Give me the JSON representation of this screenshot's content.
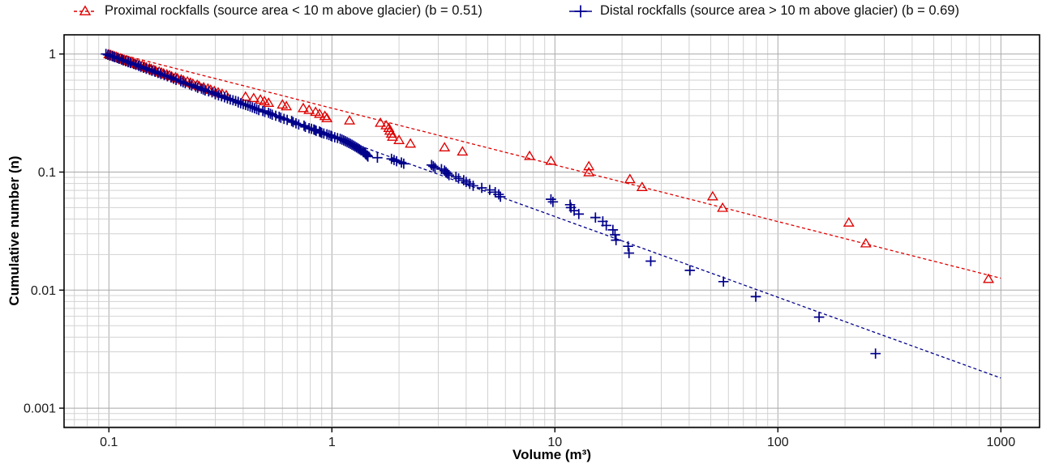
{
  "chart_data": {
    "type": "scatter",
    "title": "",
    "xlabel": "Volume (m³)",
    "ylabel": "Cumulative number (n)",
    "x_scale": "log",
    "y_scale": "log",
    "xlim": [
      0.062,
      1500
    ],
    "ylim": [
      0.00064,
      1.45
    ],
    "grid": "log major+minor grey, white background",
    "legend_position": "top",
    "x_ticks": [
      {
        "v": 0.1,
        "label": "0.1"
      },
      {
        "v": 1,
        "label": "1"
      },
      {
        "v": 10,
        "label": "10"
      },
      {
        "v": 100,
        "label": "100"
      },
      {
        "v": 1000,
        "label": "1000"
      }
    ],
    "y_ticks": [
      {
        "v": 1,
        "label": "1"
      },
      {
        "v": 0.1,
        "label": "0.1"
      },
      {
        "v": 0.01,
        "label": "0.01"
      },
      {
        "v": 0.001,
        "label": "0.001"
      }
    ],
    "series": [
      {
        "name": "Proximal rockfalls (source area < 10 m above glacier) (b = 0.51)",
        "b_value": 0.51,
        "marker": "triangle-open",
        "color": "#DE0000",
        "line_style": "dashed",
        "fit_line": {
          "from": [
            0.1,
            1.05
          ],
          "to": [
            1000,
            0.0126
          ]
        },
        "points": [
          [
            880,
            0.0125
          ],
          [
            248,
            0.025
          ],
          [
            208,
            0.0375
          ],
          [
            56.5,
            0.05
          ],
          [
            51,
            0.0625
          ],
          [
            24.6,
            0.075
          ],
          [
            21.7,
            0.0875
          ],
          [
            14.2,
            0.1
          ],
          [
            14.2,
            0.1125
          ],
          [
            9.6,
            0.125
          ],
          [
            7.7,
            0.1375
          ],
          [
            3.85,
            0.15
          ],
          [
            3.2,
            0.1625
          ],
          [
            2.25,
            0.175
          ],
          [
            2.0,
            0.1875
          ],
          [
            1.87,
            0.2
          ],
          [
            1.85,
            0.2125
          ],
          [
            1.82,
            0.225
          ],
          [
            1.8,
            0.2375
          ],
          [
            1.75,
            0.25
          ],
          [
            1.65,
            0.2625
          ],
          [
            1.2,
            0.275
          ],
          [
            0.95,
            0.2875
          ],
          [
            0.93,
            0.3
          ],
          [
            0.88,
            0.3125
          ],
          [
            0.845,
            0.325
          ],
          [
            0.79,
            0.3375
          ],
          [
            0.744,
            0.35
          ],
          [
            0.625,
            0.3625
          ],
          [
            0.6,
            0.375
          ],
          [
            0.52,
            0.3875
          ],
          [
            0.498,
            0.4
          ],
          [
            0.478,
            0.4125
          ],
          [
            0.446,
            0.425
          ],
          [
            0.41,
            0.4375
          ],
          [
            0.336,
            0.45
          ],
          [
            0.322,
            0.4625
          ],
          [
            0.309,
            0.475
          ],
          [
            0.297,
            0.4875
          ],
          [
            0.286,
            0.5
          ],
          [
            0.278,
            0.5125
          ],
          [
            0.266,
            0.525
          ],
          [
            0.254,
            0.5375
          ],
          [
            0.249,
            0.55
          ],
          [
            0.238,
            0.5625
          ],
          [
            0.232,
            0.575
          ],
          [
            0.225,
            0.5875
          ],
          [
            0.216,
            0.6
          ],
          [
            0.211,
            0.6125
          ],
          [
            0.203,
            0.625
          ],
          [
            0.199,
            0.6375
          ],
          [
            0.191,
            0.65
          ],
          [
            0.187,
            0.6625
          ],
          [
            0.182,
            0.675
          ],
          [
            0.176,
            0.6875
          ],
          [
            0.172,
            0.7
          ],
          [
            0.168,
            0.7125
          ],
          [
            0.162,
            0.725
          ],
          [
            0.159,
            0.7375
          ],
          [
            0.155,
            0.75
          ],
          [
            0.152,
            0.7625
          ],
          [
            0.147,
            0.775
          ],
          [
            0.144,
            0.7875
          ],
          [
            0.141,
            0.8
          ],
          [
            0.137,
            0.8125
          ],
          [
            0.134,
            0.825
          ],
          [
            0.131,
            0.8375
          ],
          [
            0.128,
            0.85
          ],
          [
            0.125,
            0.8625
          ],
          [
            0.123,
            0.875
          ],
          [
            0.12,
            0.8875
          ],
          [
            0.117,
            0.9
          ],
          [
            0.115,
            0.9125
          ],
          [
            0.113,
            0.925
          ],
          [
            0.11,
            0.9375
          ],
          [
            0.108,
            0.95
          ],
          [
            0.106,
            0.9625
          ],
          [
            0.104,
            0.975
          ],
          [
            0.102,
            0.9875
          ],
          [
            0.1,
            1
          ]
        ]
      },
      {
        "name": "Distal rockfalls (source area > 10 m above glacier) (b = 0.69)",
        "b_value": 0.69,
        "marker": "plus",
        "color": "#00008B",
        "line_style": "dashed",
        "fit_line": {
          "from": [
            0.1,
            0.98
          ],
          "to": [
            1000,
            0.0018
          ]
        },
        "points": [
          [
            274,
            0.0029
          ],
          [
            153,
            0.0059
          ],
          [
            79.6,
            0.0088
          ],
          [
            57,
            0.0118
          ],
          [
            40.3,
            0.0147
          ],
          [
            26.9,
            0.0176
          ],
          [
            21.5,
            0.0206
          ],
          [
            21.3,
            0.0235
          ],
          [
            18.8,
            0.0265
          ],
          [
            18.6,
            0.0294
          ],
          [
            18.2,
            0.0324
          ],
          [
            17,
            0.0353
          ],
          [
            16.4,
            0.0382
          ],
          [
            15.2,
            0.0412
          ],
          [
            12.8,
            0.0441
          ],
          [
            12.2,
            0.0471
          ],
          [
            11.8,
            0.05
          ],
          [
            11.7,
            0.0529
          ],
          [
            9.8,
            0.0559
          ],
          [
            9.6,
            0.0588
          ],
          [
            5.7,
            0.0618
          ],
          [
            5.6,
            0.0647
          ],
          [
            5.4,
            0.0676
          ],
          [
            5.1,
            0.0706
          ],
          [
            4.7,
            0.0735
          ],
          [
            4.3,
            0.0765
          ],
          [
            4.15,
            0.0794
          ],
          [
            4,
            0.0824
          ],
          [
            3.9,
            0.0853
          ],
          [
            3.7,
            0.0882
          ],
          [
            3.6,
            0.0912
          ],
          [
            3.35,
            0.0941
          ],
          [
            3.3,
            0.0971
          ],
          [
            3.25,
            0.1
          ],
          [
            3.2,
            0.1029
          ],
          [
            3.1,
            0.1059
          ],
          [
            2.9,
            0.1088
          ],
          [
            2.85,
            0.1118
          ],
          [
            2.8,
            0.1147
          ],
          [
            2.1,
            0.1176
          ],
          [
            2.05,
            0.1206
          ],
          [
            1.95,
            0.1235
          ],
          [
            1.9,
            0.1265
          ],
          [
            1.85,
            0.1294
          ],
          [
            1.6,
            0.1324
          ],
          [
            1.45,
            0.1353
          ],
          [
            1.44,
            0.1382
          ],
          [
            1.42,
            0.1412
          ],
          [
            1.41,
            0.1441
          ],
          [
            1.4,
            0.1471
          ],
          [
            1.38,
            0.15
          ],
          [
            1.35,
            0.1529
          ],
          [
            1.33,
            0.1559
          ],
          [
            1.31,
            0.1588
          ],
          [
            1.29,
            0.1618
          ],
          [
            1.27,
            0.1647
          ],
          [
            1.25,
            0.1676
          ],
          [
            1.23,
            0.1706
          ],
          [
            1.21,
            0.1735
          ],
          [
            1.19,
            0.1765
          ],
          [
            1.17,
            0.1794
          ],
          [
            1.15,
            0.1824
          ],
          [
            1.13,
            0.1853
          ],
          [
            1.11,
            0.1882
          ],
          [
            1.09,
            0.1912
          ],
          [
            1.06,
            0.1941
          ],
          [
            1.03,
            0.1971
          ],
          [
            1.0,
            0.2
          ],
          [
            0.99,
            0.2029
          ],
          [
            0.97,
            0.2059
          ],
          [
            0.95,
            0.2088
          ],
          [
            0.92,
            0.2118
          ],
          [
            0.9,
            0.2147
          ],
          [
            0.89,
            0.2176
          ],
          [
            0.88,
            0.2206
          ],
          [
            0.85,
            0.2235
          ],
          [
            0.84,
            0.2265
          ],
          [
            0.83,
            0.2294
          ],
          [
            0.81,
            0.2324
          ],
          [
            0.79,
            0.2353
          ],
          [
            0.76,
            0.2412
          ],
          [
            0.75,
            0.2471
          ],
          [
            0.71,
            0.2529
          ],
          [
            0.69,
            0.2588
          ],
          [
            0.67,
            0.2647
          ],
          [
            0.66,
            0.2706
          ],
          [
            0.63,
            0.2765
          ],
          [
            0.61,
            0.2824
          ],
          [
            0.59,
            0.2882
          ],
          [
            0.58,
            0.2941
          ],
          [
            0.56,
            0.3
          ],
          [
            0.54,
            0.3059
          ],
          [
            0.53,
            0.3118
          ],
          [
            0.52,
            0.3176
          ],
          [
            0.5,
            0.3235
          ],
          [
            0.49,
            0.3294
          ],
          [
            0.47,
            0.3353
          ],
          [
            0.46,
            0.3412
          ],
          [
            0.45,
            0.3471
          ],
          [
            0.44,
            0.3529
          ],
          [
            0.43,
            0.3588
          ],
          [
            0.42,
            0.3647
          ],
          [
            0.41,
            0.3706
          ],
          [
            0.4,
            0.3765
          ],
          [
            0.39,
            0.3824
          ],
          [
            0.38,
            0.3882
          ],
          [
            0.38,
            0.3941
          ],
          [
            0.37,
            0.4
          ],
          [
            0.36,
            0.4059
          ],
          [
            0.35,
            0.4118
          ],
          [
            0.34,
            0.4206
          ],
          [
            0.33,
            0.4294
          ],
          [
            0.32,
            0.4382
          ],
          [
            0.31,
            0.4471
          ],
          [
            0.3,
            0.4559
          ],
          [
            0.3,
            0.4647
          ],
          [
            0.29,
            0.4735
          ],
          [
            0.28,
            0.4824
          ],
          [
            0.27,
            0.4912
          ],
          [
            0.265,
            0.5
          ],
          [
            0.26,
            0.5088
          ],
          [
            0.25,
            0.5176
          ],
          [
            0.245,
            0.5294
          ],
          [
            0.235,
            0.5412
          ],
          [
            0.23,
            0.5529
          ],
          [
            0.22,
            0.5647
          ],
          [
            0.215,
            0.5765
          ],
          [
            0.21,
            0.5882
          ],
          [
            0.2,
            0.6029
          ],
          [
            0.195,
            0.6176
          ],
          [
            0.19,
            0.6324
          ],
          [
            0.183,
            0.6471
          ],
          [
            0.177,
            0.6618
          ],
          [
            0.171,
            0.6765
          ],
          [
            0.166,
            0.6912
          ],
          [
            0.161,
            0.7059
          ],
          [
            0.156,
            0.7206
          ],
          [
            0.152,
            0.7353
          ],
          [
            0.147,
            0.75
          ],
          [
            0.143,
            0.7647
          ],
          [
            0.139,
            0.7794
          ],
          [
            0.136,
            0.7941
          ],
          [
            0.132,
            0.8088
          ],
          [
            0.129,
            0.8235
          ],
          [
            0.125,
            0.8382
          ],
          [
            0.122,
            0.8529
          ],
          [
            0.119,
            0.8676
          ],
          [
            0.116,
            0.8824
          ],
          [
            0.114,
            0.8971
          ],
          [
            0.111,
            0.9118
          ],
          [
            0.109,
            0.9265
          ],
          [
            0.106,
            0.9412
          ],
          [
            0.104,
            0.9559
          ],
          [
            0.101,
            0.9706
          ],
          [
            0.099,
            0.9853
          ],
          [
            0.097,
            1
          ]
        ]
      }
    ]
  },
  "colors": {
    "background": "#FFFFFF",
    "panel_border": "#000000",
    "grid_major": "#A8A8A8",
    "grid_minor": "#D2D2D2",
    "tick": "#000000",
    "tick_label": "#1A1A1A",
    "proximal": "#DE0000",
    "distal": "#00008B"
  }
}
